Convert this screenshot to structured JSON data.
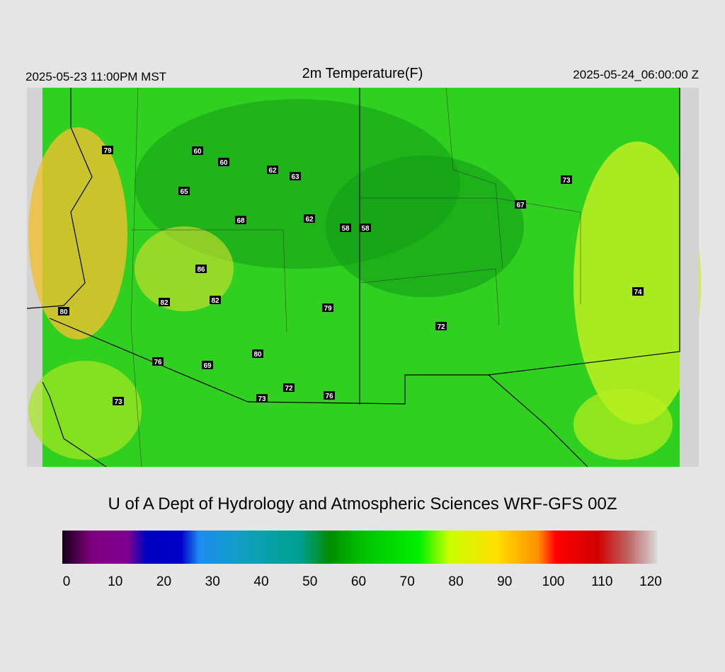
{
  "header": {
    "left": "2025-05-23 11:00PM MST",
    "title": "2m Temperature(F)",
    "right": "2025-05-24_06:00:00 Z"
  },
  "stations": [
    79,
    60,
    60,
    62,
    63,
    65,
    68,
    62,
    58,
    58,
    86,
    82,
    82,
    80,
    79,
    72,
    80,
    76,
    69,
    72,
    73,
    76,
    73,
    73,
    67,
    74
  ],
  "credit": "U of A Dept of Hydrology and Atmospheric Sciences WRF-GFS 00Z",
  "colorbar": {
    "ticks": [
      0,
      10,
      20,
      30,
      40,
      50,
      60,
      70,
      80,
      90,
      100,
      110,
      120
    ]
  }
}
